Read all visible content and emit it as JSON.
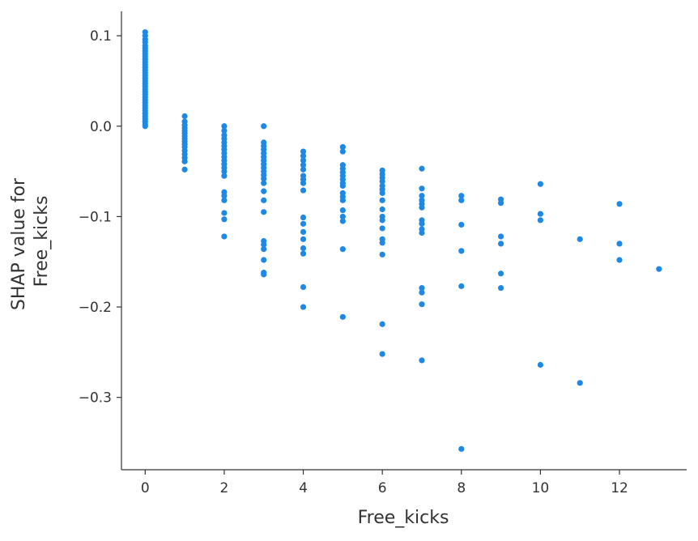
{
  "colors": {
    "point": "#1e88e5",
    "axis": "#333333"
  },
  "chart_data": {
    "type": "scatter",
    "xlabel": "Free_kicks",
    "ylabel_lines": [
      "SHAP value for",
      "Free_kicks"
    ],
    "xlim": [
      -0.6,
      13.7
    ],
    "ylim": [
      -0.38,
      0.127
    ],
    "xticks": [
      0,
      2,
      4,
      6,
      8,
      10,
      12
    ],
    "xtick_labels": [
      "0",
      "2",
      "4",
      "6",
      "8",
      "10",
      "12"
    ],
    "yticks": [
      0.1,
      0.0,
      -0.1,
      -0.2,
      -0.3
    ],
    "ytick_labels": [
      "0.1",
      "0.0",
      "−0.1",
      "−0.2",
      "−0.3"
    ],
    "grid": false,
    "legend": false,
    "points": [
      {
        "x": 0,
        "y": 0.104
      },
      {
        "x": 0,
        "y": 0.1
      },
      {
        "x": 0,
        "y": 0.096
      },
      {
        "x": 0,
        "y": 0.093
      },
      {
        "x": 0,
        "y": 0.089
      },
      {
        "x": 0,
        "y": 0.086
      },
      {
        "x": 0,
        "y": 0.083
      },
      {
        "x": 0,
        "y": 0.08
      },
      {
        "x": 0,
        "y": 0.077
      },
      {
        "x": 0,
        "y": 0.074
      },
      {
        "x": 0,
        "y": 0.071
      },
      {
        "x": 0,
        "y": 0.068
      },
      {
        "x": 0,
        "y": 0.065
      },
      {
        "x": 0,
        "y": 0.062
      },
      {
        "x": 0,
        "y": 0.059
      },
      {
        "x": 0,
        "y": 0.056
      },
      {
        "x": 0,
        "y": 0.053
      },
      {
        "x": 0,
        "y": 0.05
      },
      {
        "x": 0,
        "y": 0.047
      },
      {
        "x": 0,
        "y": 0.044
      },
      {
        "x": 0,
        "y": 0.041
      },
      {
        "x": 0,
        "y": 0.038
      },
      {
        "x": 0,
        "y": 0.035
      },
      {
        "x": 0,
        "y": 0.032
      },
      {
        "x": 0,
        "y": 0.029
      },
      {
        "x": 0,
        "y": 0.026
      },
      {
        "x": 0,
        "y": 0.023
      },
      {
        "x": 0,
        "y": 0.02
      },
      {
        "x": 0,
        "y": 0.017
      },
      {
        "x": 0,
        "y": 0.014
      },
      {
        "x": 0,
        "y": 0.011
      },
      {
        "x": 0,
        "y": 0.008
      },
      {
        "x": 0,
        "y": 0.005
      },
      {
        "x": 0,
        "y": 0.002
      },
      {
        "x": 0,
        "y": 0.0
      },
      {
        "x": 1,
        "y": 0.011
      },
      {
        "x": 1,
        "y": 0.005
      },
      {
        "x": 1,
        "y": 0.001
      },
      {
        "x": 1,
        "y": -0.002
      },
      {
        "x": 1,
        "y": -0.005
      },
      {
        "x": 1,
        "y": -0.008
      },
      {
        "x": 1,
        "y": -0.011
      },
      {
        "x": 1,
        "y": -0.014
      },
      {
        "x": 1,
        "y": -0.017
      },
      {
        "x": 1,
        "y": -0.02
      },
      {
        "x": 1,
        "y": -0.023
      },
      {
        "x": 1,
        "y": -0.027
      },
      {
        "x": 1,
        "y": -0.031
      },
      {
        "x": 1,
        "y": -0.035
      },
      {
        "x": 1,
        "y": -0.039
      },
      {
        "x": 1,
        "y": -0.048
      },
      {
        "x": 2,
        "y": 0.0
      },
      {
        "x": 2,
        "y": -0.005
      },
      {
        "x": 2,
        "y": -0.01
      },
      {
        "x": 2,
        "y": -0.014
      },
      {
        "x": 2,
        "y": -0.018
      },
      {
        "x": 2,
        "y": -0.022
      },
      {
        "x": 2,
        "y": -0.026
      },
      {
        "x": 2,
        "y": -0.03
      },
      {
        "x": 2,
        "y": -0.034
      },
      {
        "x": 2,
        "y": -0.038
      },
      {
        "x": 2,
        "y": -0.042
      },
      {
        "x": 2,
        "y": -0.046
      },
      {
        "x": 2,
        "y": -0.05
      },
      {
        "x": 2,
        "y": -0.055
      },
      {
        "x": 2,
        "y": -0.073
      },
      {
        "x": 2,
        "y": -0.077
      },
      {
        "x": 2,
        "y": -0.082
      },
      {
        "x": 2,
        "y": -0.096
      },
      {
        "x": 2,
        "y": -0.103
      },
      {
        "x": 2,
        "y": -0.122
      },
      {
        "x": 3,
        "y": 0.0
      },
      {
        "x": 3,
        "y": -0.018
      },
      {
        "x": 3,
        "y": -0.022
      },
      {
        "x": 3,
        "y": -0.026
      },
      {
        "x": 3,
        "y": -0.03
      },
      {
        "x": 3,
        "y": -0.034
      },
      {
        "x": 3,
        "y": -0.038
      },
      {
        "x": 3,
        "y": -0.042
      },
      {
        "x": 3,
        "y": -0.046
      },
      {
        "x": 3,
        "y": -0.05
      },
      {
        "x": 3,
        "y": -0.054
      },
      {
        "x": 3,
        "y": -0.058
      },
      {
        "x": 3,
        "y": -0.063
      },
      {
        "x": 3,
        "y": -0.072
      },
      {
        "x": 3,
        "y": -0.082
      },
      {
        "x": 3,
        "y": -0.095
      },
      {
        "x": 3,
        "y": -0.127
      },
      {
        "x": 3,
        "y": -0.131
      },
      {
        "x": 3,
        "y": -0.136
      },
      {
        "x": 3,
        "y": -0.148
      },
      {
        "x": 3,
        "y": -0.162
      },
      {
        "x": 3,
        "y": -0.164
      },
      {
        "x": 4,
        "y": -0.028
      },
      {
        "x": 4,
        "y": -0.033
      },
      {
        "x": 4,
        "y": -0.038
      },
      {
        "x": 4,
        "y": -0.043
      },
      {
        "x": 4,
        "y": -0.048
      },
      {
        "x": 4,
        "y": -0.055
      },
      {
        "x": 4,
        "y": -0.059
      },
      {
        "x": 4,
        "y": -0.063
      },
      {
        "x": 4,
        "y": -0.071
      },
      {
        "x": 4,
        "y": -0.101
      },
      {
        "x": 4,
        "y": -0.108
      },
      {
        "x": 4,
        "y": -0.117
      },
      {
        "x": 4,
        "y": -0.125
      },
      {
        "x": 4,
        "y": -0.135
      },
      {
        "x": 4,
        "y": -0.141
      },
      {
        "x": 4,
        "y": -0.178
      },
      {
        "x": 4,
        "y": -0.2
      },
      {
        "x": 5,
        "y": -0.023
      },
      {
        "x": 5,
        "y": -0.028
      },
      {
        "x": 5,
        "y": -0.043
      },
      {
        "x": 5,
        "y": -0.047
      },
      {
        "x": 5,
        "y": -0.051
      },
      {
        "x": 5,
        "y": -0.055
      },
      {
        "x": 5,
        "y": -0.059
      },
      {
        "x": 5,
        "y": -0.063
      },
      {
        "x": 5,
        "y": -0.066
      },
      {
        "x": 5,
        "y": -0.074
      },
      {
        "x": 5,
        "y": -0.078
      },
      {
        "x": 5,
        "y": -0.082
      },
      {
        "x": 5,
        "y": -0.093
      },
      {
        "x": 5,
        "y": -0.1
      },
      {
        "x": 5,
        "y": -0.105
      },
      {
        "x": 5,
        "y": -0.136
      },
      {
        "x": 5,
        "y": -0.211
      },
      {
        "x": 6,
        "y": -0.049
      },
      {
        "x": 6,
        "y": -0.053
      },
      {
        "x": 6,
        "y": -0.057
      },
      {
        "x": 6,
        "y": -0.061
      },
      {
        "x": 6,
        "y": -0.066
      },
      {
        "x": 6,
        "y": -0.07
      },
      {
        "x": 6,
        "y": -0.074
      },
      {
        "x": 6,
        "y": -0.082
      },
      {
        "x": 6,
        "y": -0.092
      },
      {
        "x": 6,
        "y": -0.1
      },
      {
        "x": 6,
        "y": -0.104
      },
      {
        "x": 6,
        "y": -0.113
      },
      {
        "x": 6,
        "y": -0.125
      },
      {
        "x": 6,
        "y": -0.129
      },
      {
        "x": 6,
        "y": -0.142
      },
      {
        "x": 6,
        "y": -0.219
      },
      {
        "x": 6,
        "y": -0.252
      },
      {
        "x": 7,
        "y": -0.047
      },
      {
        "x": 7,
        "y": -0.069
      },
      {
        "x": 7,
        "y": -0.077
      },
      {
        "x": 7,
        "y": -0.082
      },
      {
        "x": 7,
        "y": -0.086
      },
      {
        "x": 7,
        "y": -0.09
      },
      {
        "x": 7,
        "y": -0.104
      },
      {
        "x": 7,
        "y": -0.108
      },
      {
        "x": 7,
        "y": -0.114
      },
      {
        "x": 7,
        "y": -0.118
      },
      {
        "x": 7,
        "y": -0.179
      },
      {
        "x": 7,
        "y": -0.184
      },
      {
        "x": 7,
        "y": -0.197
      },
      {
        "x": 7,
        "y": -0.259
      },
      {
        "x": 8,
        "y": -0.077
      },
      {
        "x": 8,
        "y": -0.082
      },
      {
        "x": 8,
        "y": -0.109
      },
      {
        "x": 8,
        "y": -0.138
      },
      {
        "x": 8,
        "y": -0.177
      },
      {
        "x": 8,
        "y": -0.357
      },
      {
        "x": 9,
        "y": -0.081
      },
      {
        "x": 9,
        "y": -0.085
      },
      {
        "x": 9,
        "y": -0.122
      },
      {
        "x": 9,
        "y": -0.13
      },
      {
        "x": 9,
        "y": -0.163
      },
      {
        "x": 9,
        "y": -0.179
      },
      {
        "x": 10,
        "y": -0.064
      },
      {
        "x": 10,
        "y": -0.097
      },
      {
        "x": 10,
        "y": -0.104
      },
      {
        "x": 10,
        "y": -0.264
      },
      {
        "x": 11,
        "y": -0.125
      },
      {
        "x": 11,
        "y": -0.284
      },
      {
        "x": 12,
        "y": -0.086
      },
      {
        "x": 12,
        "y": -0.13
      },
      {
        "x": 12,
        "y": -0.148
      },
      {
        "x": 13,
        "y": -0.158
      }
    ]
  }
}
